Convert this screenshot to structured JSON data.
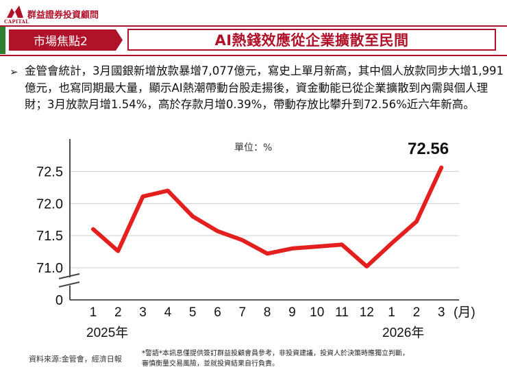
{
  "header": {
    "logo_en": "CAPITAL",
    "logo_cn": "群益證券投資顧問",
    "topic_tab": "市場焦點2",
    "title": "AI熱錢效應從企業擴散至民間"
  },
  "body": {
    "bullet_symbol": "➢",
    "paragraph": "金管會統計，3月國銀新增放款暴增7,077億元，寫史上單月新高，其中個人放款同步大增1,991億元，也寫同期最大量，顯示AI熱潮帶動台股走揚後，資金動能已從企業擴散到內需與個人理財；3月放款月增1.54%，高於存款月增0.39%，帶動存放比攀升到72.56%近六年新高。"
  },
  "colors": {
    "brand_red": "#b0122a",
    "series_red": "#e3201e",
    "accent_green": "#2e7d32",
    "grid": "#cccccc"
  },
  "chart_data": {
    "type": "line",
    "unit_label": "單位：%",
    "x_unit": "(月)",
    "categories": [
      "1",
      "2",
      "3",
      "4",
      "5",
      "6",
      "7",
      "8",
      "9",
      "10",
      "11",
      "12",
      "1",
      "2",
      "3"
    ],
    "year_labels": [
      "2025年",
      "2026年"
    ],
    "values": [
      71.6,
      71.26,
      72.11,
      72.2,
      71.8,
      71.57,
      71.43,
      71.22,
      71.3,
      71.33,
      71.36,
      71.02,
      71.38,
      71.72,
      72.56
    ],
    "last_value_label": "72.56",
    "y_ticks": [
      "72.5",
      "72.0",
      "71.5",
      "71.0",
      "0"
    ],
    "ylim": [
      71.0,
      72.6
    ],
    "axis_break": true,
    "grid": "horizontal"
  },
  "footer": {
    "source": "資料來源:金管會，經濟日報",
    "warning_line1": "*警語*本訊息僅提供簽訂群益投顧會員參考，非投資建議，投資人於決策時應獨立判斷，",
    "warning_line2": "審慎衡量交易風險，並就投資結果自行負責。"
  }
}
